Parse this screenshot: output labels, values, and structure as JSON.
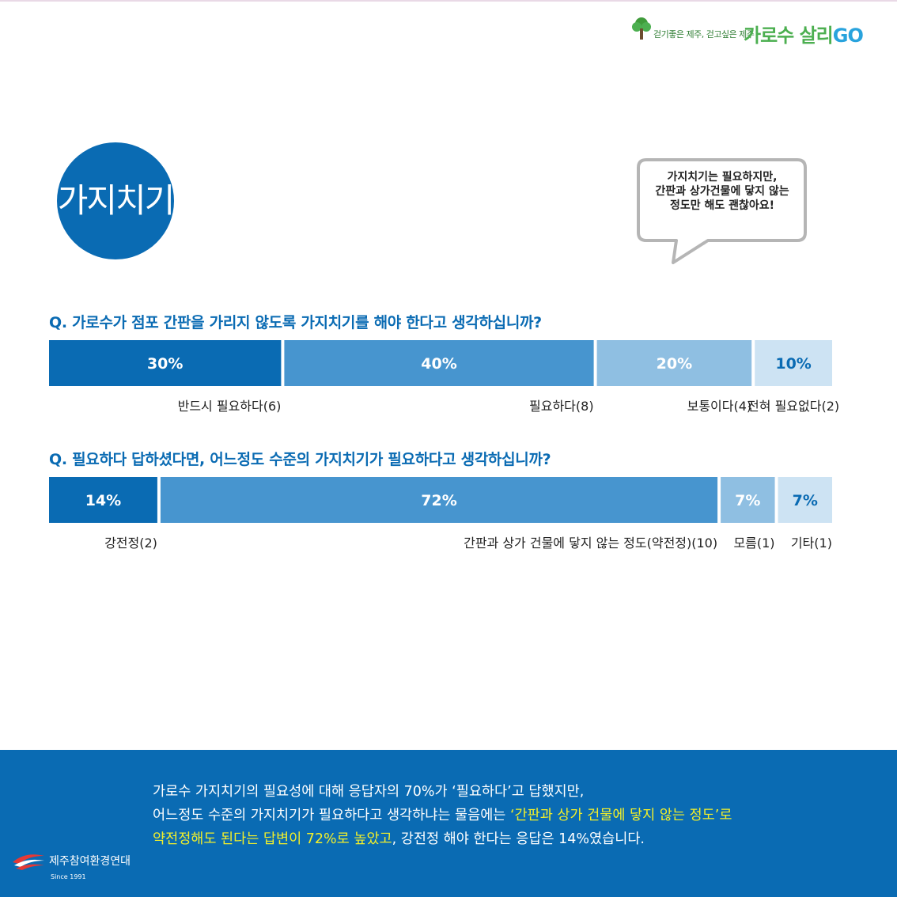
{
  "campaign": {
    "slogan": "걷기좋은 제주, 걷고싶은 제주",
    "brand_main": "가로수 살리",
    "brand_go": "GO"
  },
  "topic": {
    "title": "가지치기"
  },
  "bubble": {
    "lines": [
      "가지치기는 필요하지만,",
      "간판과 상가건물에 닿지 않는",
      "정도만 해도 괜찮아요!"
    ]
  },
  "colors": {
    "primary": "#0a6bb3",
    "bar_dark": "#0a6bb3",
    "bar_mid": "#4795cf",
    "bar_light": "#8fbfe2",
    "bar_pale": "#cde3f3",
    "highlight": "#f2ef2a"
  },
  "chart_data": [
    {
      "type": "bar",
      "orientation": "horizontal-stacked",
      "title": "Q. 가로수가 점포 간판을 가리지 않도록 가지치기를 해야 한다고 생각하십니까?",
      "categories": [
        "반드시 필요하다(6)",
        "필요하다(8)",
        "보통이다(4)",
        "전혀 필요없다(2)"
      ],
      "values": [
        30,
        40,
        20,
        10
      ],
      "value_labels": [
        "30%",
        "40%",
        "20%",
        "10%"
      ],
      "counts": [
        6,
        8,
        4,
        2
      ],
      "colors": [
        "#0a6bb3",
        "#4795cf",
        "#8fbfe2",
        "#cde3f3"
      ],
      "label_colors": [
        "#ffffff",
        "#ffffff",
        "#ffffff",
        "#0a6bb3"
      ]
    },
    {
      "type": "bar",
      "orientation": "horizontal-stacked",
      "title": "Q. 필요하다 답하셨다면, 어느정도 수준의 가지치기가 필요하다고 생각하십니까?",
      "categories": [
        "강전정(2)",
        "간판과 상가 건물에 닿지 않는 정도(약전정)(10)",
        "모름(1)",
        "기타(1)"
      ],
      "values": [
        14,
        72,
        7,
        7
      ],
      "value_labels": [
        "14%",
        "72%",
        "7%",
        "7%"
      ],
      "counts": [
        2,
        10,
        1,
        1
      ],
      "colors": [
        "#0a6bb3",
        "#4795cf",
        "#8fbfe2",
        "#cde3f3"
      ],
      "label_colors": [
        "#ffffff",
        "#ffffff",
        "#ffffff",
        "#0a6bb3"
      ]
    }
  ],
  "summary": {
    "line1": "가로수 가지치기의 필요성에 대해 응답자의 70%가 ‘필요하다’고 답했지만,",
    "line2_a": "어느정도 수준의 가지치기가 필요하다고 생각하냐는 물음에는 ",
    "line2_b": "‘간판과 상가 건물에 닿지 않는 정도’로",
    "line3_a": "약전정해도 된다는 답변이 72%로 높았고",
    "line3_b": ", 강전정 해야 한다는 응답은 14%였습니다."
  },
  "org": {
    "name": "제주참여환경연대",
    "since": "Since 1991"
  }
}
